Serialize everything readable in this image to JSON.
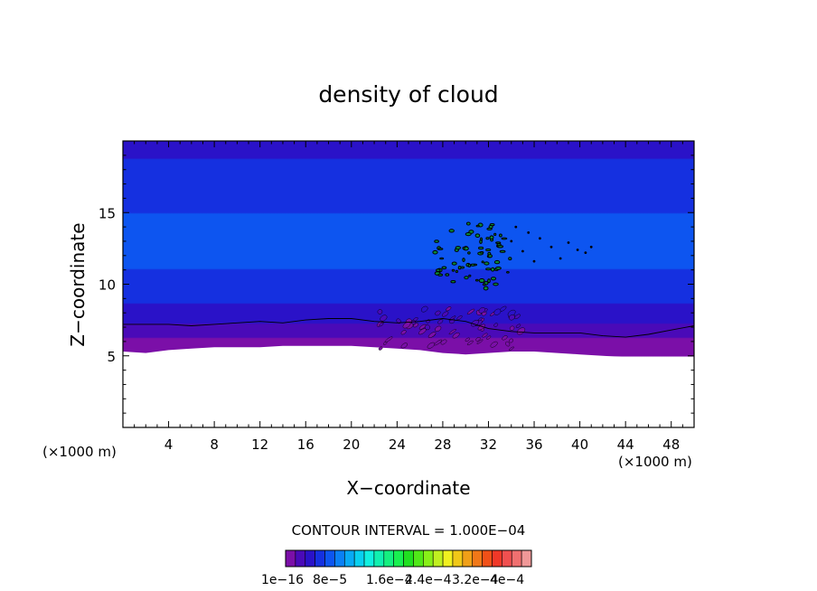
{
  "chart_data": {
    "type": "heatmap",
    "title": "density of cloud",
    "xlabel": "X−coordinate",
    "ylabel": "Z−coordinate",
    "x_unit_left": "(×1000 m)",
    "x_unit_right": "(×1000 m)",
    "xlim": [
      0,
      50
    ],
    "ylim": [
      0,
      20
    ],
    "x_ticks": [
      4,
      8,
      12,
      16,
      20,
      24,
      28,
      32,
      36,
      40,
      44,
      48
    ],
    "y_ticks": [
      5,
      10,
      15
    ],
    "x_tick_labels": [
      "4",
      "8",
      "12",
      "16",
      "20",
      "24",
      "28",
      "32",
      "36",
      "40",
      "44",
      "48"
    ],
    "y_tick_labels": [
      "5",
      "10",
      "15"
    ],
    "contour_interval_label": "CONTOUR INTERVAL = 1.000E−04",
    "colorbar": {
      "min": 1e-16,
      "max": 0.0004,
      "tick_labels": [
        "1e−16",
        "8e−5",
        "1.6e−4",
        "2.4e−4",
        "3.2e−4",
        "4e−4"
      ],
      "colors": [
        "#7b0fa8",
        "#4a0ab8",
        "#2a12c8",
        "#1530e0",
        "#0d55f0",
        "#0a80f5",
        "#08aaf5",
        "#08d0f0",
        "#10f0e0",
        "#10f0b0",
        "#14f080",
        "#18f050",
        "#20e020",
        "#50e818",
        "#88f018",
        "#c0f020",
        "#f0f020",
        "#f0c818",
        "#f0a018",
        "#f07818",
        "#f05018",
        "#f03828",
        "#f05050",
        "#f07070",
        "#f09898"
      ]
    },
    "profile": {
      "z": [
        0,
        4.9,
        5,
        5.5,
        6,
        6.5,
        7,
        7.5,
        8,
        9,
        10,
        11,
        12,
        13,
        14,
        15,
        16,
        17,
        18,
        18.5,
        19,
        20
      ],
      "density": [
        0,
        0,
        5e-07,
        4e-06,
        1.2e-05,
        2e-05,
        2.8e-05,
        3.6e-05,
        4.2e-05,
        5.2e-05,
        6e-05,
        6.4e-05,
        6.6e-05,
        6.6e-05,
        6.5e-05,
        6.4e-05,
        6.2e-05,
        5.8e-05,
        5.3e-05,
        5e-05,
        4.6e-05,
        4.5e-05
      ]
    },
    "cloud_base_z": [
      [
        0,
        5.3
      ],
      [
        2,
        5.2
      ],
      [
        4,
        5.4
      ],
      [
        6,
        5.5
      ],
      [
        8,
        5.6
      ],
      [
        10,
        5.6
      ],
      [
        12,
        5.6
      ],
      [
        14,
        5.7
      ],
      [
        16,
        5.7
      ],
      [
        18,
        5.7
      ],
      [
        20,
        5.7
      ],
      [
        22,
        5.6
      ],
      [
        24,
        5.5
      ],
      [
        26,
        5.4
      ],
      [
        28,
        5.2
      ],
      [
        30,
        5.1
      ],
      [
        32,
        5.2
      ],
      [
        34,
        5.3
      ],
      [
        36,
        5.3
      ],
      [
        38,
        5.2
      ],
      [
        40,
        5.1
      ],
      [
        42,
        5.0
      ],
      [
        44,
        4.9
      ],
      [
        46,
        4.8
      ],
      [
        48,
        4.8
      ],
      [
        50,
        4.9
      ]
    ],
    "contour_line_z": [
      [
        0,
        7.2
      ],
      [
        2,
        7.2
      ],
      [
        4,
        7.2
      ],
      [
        6,
        7.1
      ],
      [
        8,
        7.2
      ],
      [
        10,
        7.3
      ],
      [
        12,
        7.4
      ],
      [
        14,
        7.3
      ],
      [
        16,
        7.5
      ],
      [
        18,
        7.6
      ],
      [
        20,
        7.6
      ],
      [
        22,
        7.4
      ],
      [
        24,
        7.3
      ],
      [
        26,
        7.4
      ],
      [
        28,
        7.6
      ],
      [
        30,
        7.4
      ],
      [
        32,
        6.9
      ],
      [
        34,
        6.7
      ],
      [
        36,
        6.6
      ],
      [
        38,
        6.6
      ],
      [
        40,
        6.6
      ],
      [
        42,
        6.4
      ],
      [
        44,
        6.3
      ],
      [
        46,
        6.5
      ],
      [
        48,
        6.8
      ],
      [
        50,
        7.1
      ]
    ],
    "plume": {
      "x_range": [
        27,
        34
      ],
      "z_range": [
        9.5,
        14.3
      ],
      "disturbance_x_range": [
        22.5,
        35
      ],
      "disturbance_z_range": [
        5.5,
        8.3
      ],
      "scattered_points": [
        [
          34.4,
          14
        ],
        [
          35.5,
          13.6
        ],
        [
          36.5,
          13.2
        ],
        [
          37.5,
          12.6
        ],
        [
          38.3,
          11.8
        ],
        [
          39,
          12.9
        ],
        [
          39.8,
          12.4
        ],
        [
          40.5,
          12.2
        ],
        [
          41,
          12.6
        ],
        [
          34,
          13
        ],
        [
          35,
          12.3
        ],
        [
          36,
          11.6
        ]
      ]
    }
  }
}
